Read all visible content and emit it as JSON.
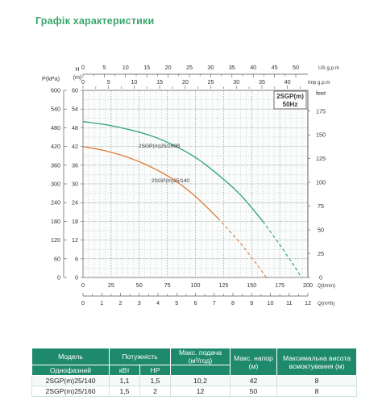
{
  "title": "Графік характеристики",
  "chart_data": {
    "type": "line",
    "legend_box": {
      "line1": "2SGP(m)",
      "line2": "50Hz"
    },
    "axes": {
      "pressure": {
        "label": "P(kPa)",
        "ticks": [
          "0",
          "60",
          "120",
          "180",
          "240",
          "300",
          "360",
          "420",
          "480",
          "540",
          "600"
        ]
      },
      "head_m": {
        "label_top": "H",
        "label_bottom": "(m)",
        "ticks": [
          "0",
          "6",
          "12",
          "18",
          "24",
          "30",
          "36",
          "42",
          "48",
          "54",
          "60"
        ],
        "range": [
          0,
          60
        ]
      },
      "feet": {
        "label": "feet",
        "ticks": [
          "0",
          "25",
          "50",
          "75",
          "100",
          "125",
          "150",
          "175"
        ]
      },
      "us_gpm": {
        "label": "US g.p.m",
        "ticks": [
          "0",
          "5",
          "10",
          "15",
          "20",
          "25",
          "30",
          "35",
          "40",
          "45",
          "50"
        ]
      },
      "imp_gpm": {
        "label": "Imp g.p.m",
        "ticks": [
          "0",
          "5",
          "10",
          "15",
          "20",
          "25",
          "30",
          "35",
          "40"
        ]
      },
      "flow_lmin": {
        "label": "Q(l/min)",
        "ticks": [
          "0",
          "25",
          "50",
          "75",
          "100",
          "125",
          "150",
          "175",
          "200"
        ],
        "range": [
          0,
          200
        ]
      },
      "flow_m3h": {
        "label": "Q(m³/h)",
        "ticks": [
          "0",
          "1",
          "2",
          "3",
          "4",
          "5",
          "6",
          "7",
          "8",
          "9",
          "10",
          "11",
          "12"
        ]
      }
    },
    "grid": true,
    "series": [
      {
        "name": "2SGP(m)25/160B",
        "color": "#2aa07d",
        "points": [
          [
            0,
            50
          ],
          [
            20,
            49
          ],
          [
            40,
            47.5
          ],
          [
            60,
            45.5
          ],
          [
            80,
            42.5
          ],
          [
            100,
            38.5
          ],
          [
            120,
            33
          ],
          [
            140,
            26.5
          ],
          [
            160,
            18
          ],
          [
            175,
            10.5
          ],
          [
            190,
            2.5
          ],
          [
            194,
            0
          ]
        ],
        "solid_until": 160
      },
      {
        "name": "2SGP(m)25/140",
        "color": "#e07a3a",
        "points": [
          [
            0,
            42
          ],
          [
            20,
            40.6
          ],
          [
            40,
            38.5
          ],
          [
            60,
            35.5
          ],
          [
            80,
            31.5
          ],
          [
            100,
            26
          ],
          [
            120,
            19
          ],
          [
            140,
            11
          ],
          [
            155,
            4
          ],
          [
            163,
            0
          ]
        ],
        "solid_until": 130
      }
    ]
  },
  "table": {
    "headers": {
      "model": "Модель",
      "power": "Потужність",
      "max_flow": "Макс. подача",
      "max_flow_unit": "(м³/год)",
      "max_head": "Макс. напор",
      "max_head_unit": "(м)",
      "max_suction": "Максимальна висота всмоктування",
      "max_suction_unit": "(м)",
      "single_phase": "Однофазний",
      "kw": "кВт",
      "hp": "HP"
    },
    "rows": [
      {
        "model": "2SGP(m)25/140",
        "kw": "1,1",
        "hp": "1,5",
        "flow": "10,2",
        "head": "42",
        "suction": "8"
      },
      {
        "model": "2SGP(m)25/160",
        "kw": "1,5",
        "hp": "2",
        "flow": "12",
        "head": "50",
        "suction": "8"
      }
    ]
  }
}
